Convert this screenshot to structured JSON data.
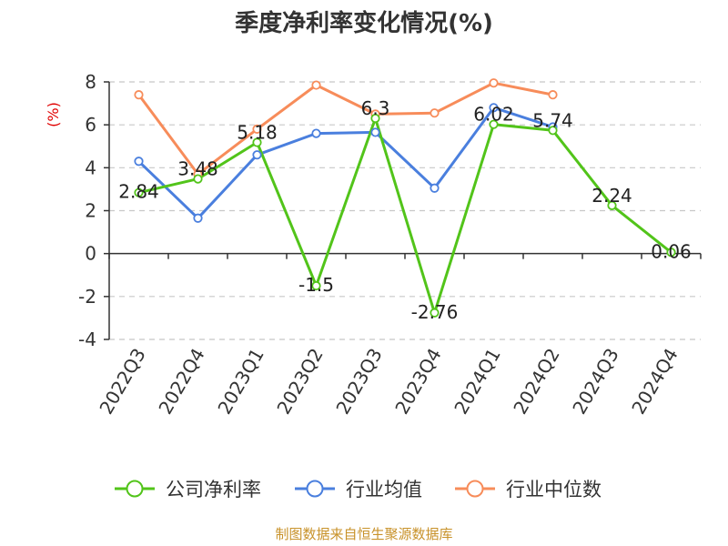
{
  "chart_data": {
    "type": "line",
    "title": "季度净利率变化情况(%)",
    "ylabel": "(%)",
    "xlabel": "",
    "ylim": [
      -4,
      8
    ],
    "yticks": [
      "8",
      "6",
      "4",
      "2",
      "0",
      "-2",
      "-4"
    ],
    "grid": true,
    "legend_position": "bottom",
    "categories": [
      "2022Q3",
      "2022Q4",
      "2023Q1",
      "2023Q2",
      "2023Q3",
      "2023Q4",
      "2024Q1",
      "2024Q2",
      "2024Q3",
      "2024Q4"
    ],
    "series": [
      {
        "name": "公司净利率",
        "color": "#52c41a",
        "values": [
          2.84,
          3.48,
          5.18,
          -1.5,
          6.3,
          -2.76,
          6.02,
          5.74,
          2.24,
          0.06
        ],
        "labels": [
          "2.84",
          "3.48",
          "5.18",
          "-1.5",
          "6.3",
          "-2.76",
          "6.02",
          "5.74",
          "2.24",
          "0.06"
        ]
      },
      {
        "name": "行业均值",
        "color": "#4a7fde",
        "values": [
          4.3,
          1.65,
          4.6,
          5.6,
          5.65,
          3.05,
          6.8,
          5.9,
          null,
          null
        ]
      },
      {
        "name": "行业中位数",
        "color": "#f78c5a",
        "values": [
          7.4,
          3.7,
          5.8,
          7.85,
          6.5,
          6.55,
          7.95,
          7.4,
          null,
          null
        ]
      }
    ]
  },
  "footer": {
    "source": "制图数据来自恒生聚源数据库"
  }
}
